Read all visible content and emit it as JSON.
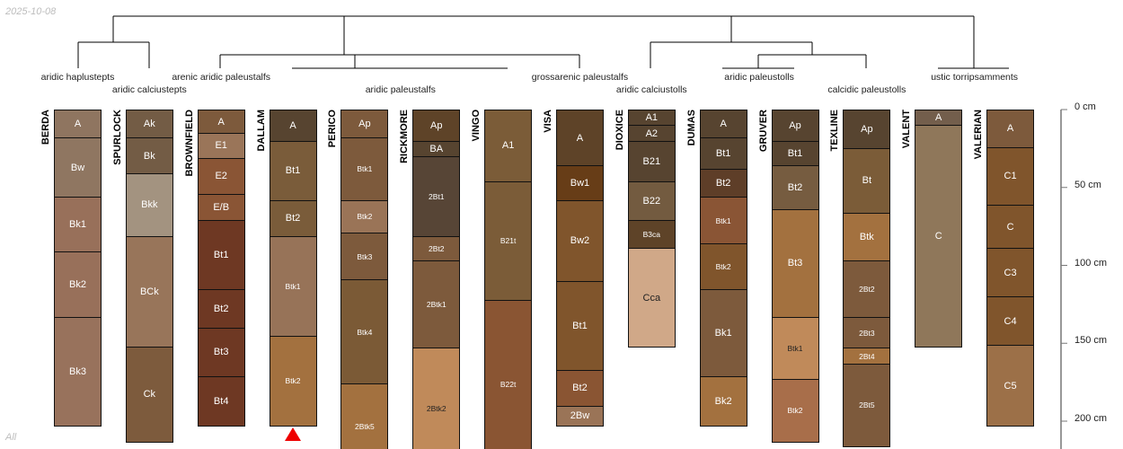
{
  "date": "2025-10-08",
  "group_label": "All",
  "colors": {
    "line": "#000000",
    "axis": "#777777",
    "marker": "#ee0000"
  },
  "taxa_row1": [
    {
      "label": "aridic haplustepts",
      "center_profile": 0
    },
    {
      "label": "arenic aridic paleustalfs",
      "center_profile": 2
    },
    {
      "label": "grossarenic paleustalfs",
      "center_profile": 7
    },
    {
      "label": "aridic paleustolls",
      "center_profile": 9.5
    },
    {
      "label": "ustic torripsamments",
      "center_profile": 12.5
    }
  ],
  "taxa_row2": [
    {
      "label": "aridic calciustepts",
      "center_profile": 1
    },
    {
      "label": "aridic paleustalfs",
      "center_profile": 4.5
    },
    {
      "label": "aridic calciustolls",
      "center_profile": 8
    },
    {
      "label": "calcidic paleustolls",
      "center_profile": 11
    }
  ],
  "depth_axis": {
    "unit": "cm",
    "ticks": [
      0,
      50,
      100,
      150,
      200
    ],
    "labels": [
      "0 cm",
      "50 cm",
      "100 cm",
      "150 cm",
      "200 cm"
    ]
  },
  "profiles": [
    {
      "name": "BERDA",
      "horizons": [
        {
          "n": "A",
          "t": 0,
          "b": 18,
          "c": "#8f7560"
        },
        {
          "n": "Bw",
          "t": 18,
          "b": 56,
          "c": "#8f7661"
        },
        {
          "n": "Bk1",
          "t": 56,
          "b": 91,
          "c": "#98705a"
        },
        {
          "n": "Bk2",
          "t": 91,
          "b": 133,
          "c": "#98705a"
        },
        {
          "n": "Bk3",
          "t": 133,
          "b": 203,
          "c": "#98725c"
        }
      ]
    },
    {
      "name": "SPURLOCK",
      "horizons": [
        {
          "n": "Ak",
          "t": 0,
          "b": 18,
          "c": "#735c45"
        },
        {
          "n": "Bk",
          "t": 18,
          "b": 41,
          "c": "#735c45"
        },
        {
          "n": "Bkk",
          "t": 41,
          "b": 81,
          "c": "#a39380"
        },
        {
          "n": "BCk",
          "t": 81,
          "b": 152,
          "c": "#98755a"
        },
        {
          "n": "Ck",
          "t": 152,
          "b": 213,
          "c": "#7d5b3d"
        }
      ]
    },
    {
      "name": "BROWNFIELD",
      "horizons": [
        {
          "n": "A",
          "t": 0,
          "b": 15,
          "c": "#7d5a3c"
        },
        {
          "n": "E1",
          "t": 15,
          "b": 31,
          "c": "#9a7559"
        },
        {
          "n": "E2",
          "t": 31,
          "b": 54,
          "c": "#8a5535"
        },
        {
          "n": "E/B",
          "t": 54,
          "b": 71,
          "c": "#8a5535"
        },
        {
          "n": "Bt1",
          "t": 71,
          "b": 115,
          "c": "#6e3823"
        },
        {
          "n": "Bt2",
          "t": 115,
          "b": 140,
          "c": "#6e3823"
        },
        {
          "n": "Bt3",
          "t": 140,
          "b": 171,
          "c": "#6e3823"
        },
        {
          "n": "Bt4",
          "t": 171,
          "b": 203,
          "c": "#6e3823"
        }
      ]
    },
    {
      "name": "DALLAM",
      "horizons": [
        {
          "n": "A",
          "t": 0,
          "b": 20,
          "c": "#574430"
        },
        {
          "n": "Bt1",
          "t": 20,
          "b": 58,
          "c": "#7a5c3a"
        },
        {
          "n": "Bt2",
          "t": 58,
          "b": 81,
          "c": "#7a5c3a"
        },
        {
          "n": "Btk1",
          "t": 81,
          "b": 145,
          "c": "#977358"
        },
        {
          "n": "Btk2",
          "t": 145,
          "b": 203,
          "c": "#a3713f"
        }
      ]
    },
    {
      "name": "PERICO",
      "horizons": [
        {
          "n": "Ap",
          "t": 0,
          "b": 18,
          "c": "#7d5a3c"
        },
        {
          "n": "Btk1",
          "t": 18,
          "b": 58,
          "c": "#7d5a3c"
        },
        {
          "n": "Btk2",
          "t": 58,
          "b": 79,
          "c": "#9a7457"
        },
        {
          "n": "Btk3",
          "t": 79,
          "b": 109,
          "c": "#7d5a3c"
        },
        {
          "n": "Btk4",
          "t": 109,
          "b": 176,
          "c": "#7b5a36"
        },
        {
          "n": "2Btk5",
          "t": 176,
          "b": 230,
          "c": "#a3713f"
        }
      ]
    },
    {
      "name": "RICKMORE",
      "horizons": [
        {
          "n": "Ap",
          "t": 0,
          "b": 20,
          "c": "#5e4328"
        },
        {
          "n": "BA",
          "t": 20,
          "b": 30,
          "c": "#574430"
        },
        {
          "n": "2Bt1",
          "t": 30,
          "b": 81,
          "c": "#574536"
        },
        {
          "n": "2Bt2",
          "t": 81,
          "b": 97,
          "c": "#7d5a3c"
        },
        {
          "n": "2Btk1",
          "t": 97,
          "b": 153,
          "c": "#7d5a3c"
        },
        {
          "n": "2Btk2",
          "t": 153,
          "b": 230,
          "c": "#c08a5a",
          "dark": true
        }
      ]
    },
    {
      "name": "VINGO",
      "horizons": [
        {
          "n": "A1",
          "t": 0,
          "b": 46,
          "c": "#7b5c38"
        },
        {
          "n": "B21t",
          "t": 46,
          "b": 122,
          "c": "#7b5c38"
        },
        {
          "n": "B22t",
          "t": 122,
          "b": 230,
          "c": "#8a5533"
        }
      ]
    },
    {
      "name": "VISA",
      "horizons": [
        {
          "n": "A",
          "t": 0,
          "b": 36,
          "c": "#5e4328"
        },
        {
          "n": "Bw1",
          "t": 36,
          "b": 58,
          "c": "#673d17"
        },
        {
          "n": "Bw2",
          "t": 58,
          "b": 110,
          "c": "#80552c"
        },
        {
          "n": "Bt1",
          "t": 110,
          "b": 167,
          "c": "#80552c"
        },
        {
          "n": "Bt2",
          "t": 167,
          "b": 190,
          "c": "#8a5533"
        },
        {
          "n": "2Bw",
          "t": 190,
          "b": 203,
          "c": "#9a7457"
        }
      ]
    },
    {
      "name": "DIOXICE",
      "horizons": [
        {
          "n": "A1",
          "t": 0,
          "b": 10,
          "c": "#574430"
        },
        {
          "n": "A2",
          "t": 10,
          "b": 20,
          "c": "#574430"
        },
        {
          "n": "B21",
          "t": 20,
          "b": 46,
          "c": "#574430"
        },
        {
          "n": "B22",
          "t": 46,
          "b": 71,
          "c": "#735b40"
        },
        {
          "n": "B3ca",
          "t": 71,
          "b": 89,
          "c": "#5e4328"
        },
        {
          "n": "Cca",
          "t": 89,
          "b": 152,
          "c": "#d0a888",
          "dark": true
        }
      ]
    },
    {
      "name": "DUMAS",
      "horizons": [
        {
          "n": "A",
          "t": 0,
          "b": 18,
          "c": "#574430"
        },
        {
          "n": "Bt1",
          "t": 18,
          "b": 38,
          "c": "#574430"
        },
        {
          "n": "Bt2",
          "t": 38,
          "b": 56,
          "c": "#5e3e28"
        },
        {
          "n": "Btk1",
          "t": 56,
          "b": 86,
          "c": "#8a5535"
        },
        {
          "n": "Btk2",
          "t": 86,
          "b": 115,
          "c": "#80552c"
        },
        {
          "n": "Bk1",
          "t": 115,
          "b": 171,
          "c": "#7d5a3c"
        },
        {
          "n": "Bk2",
          "t": 171,
          "b": 203,
          "c": "#a3713f"
        }
      ]
    },
    {
      "name": "GRUVER",
      "horizons": [
        {
          "n": "Ap",
          "t": 0,
          "b": 20,
          "c": "#574430"
        },
        {
          "n": "Bt1",
          "t": 20,
          "b": 36,
          "c": "#574430"
        },
        {
          "n": "Bt2",
          "t": 36,
          "b": 64,
          "c": "#765c40"
        },
        {
          "n": "Bt3",
          "t": 64,
          "b": 133,
          "c": "#a3713f"
        },
        {
          "n": "Btk1",
          "t": 133,
          "b": 173,
          "c": "#c08a5a",
          "dark": true
        },
        {
          "n": "Btk2",
          "t": 173,
          "b": 213,
          "c": "#a86e4a"
        }
      ]
    },
    {
      "name": "TEXLINE",
      "horizons": [
        {
          "n": "Ap",
          "t": 0,
          "b": 25,
          "c": "#574430"
        },
        {
          "n": "Bt",
          "t": 25,
          "b": 66,
          "c": "#7b5c38"
        },
        {
          "n": "Btk",
          "t": 66,
          "b": 97,
          "c": "#a3713f"
        },
        {
          "n": "2Bt2",
          "t": 97,
          "b": 133,
          "c": "#7d5a3c"
        },
        {
          "n": "2Bt3",
          "t": 133,
          "b": 153,
          "c": "#7d5a3c"
        },
        {
          "n": "2Bt4",
          "t": 153,
          "b": 163,
          "c": "#a3713f"
        },
        {
          "n": "2Bt5",
          "t": 163,
          "b": 216,
          "c": "#7d5a3c"
        }
      ]
    },
    {
      "name": "VALENT",
      "horizons": [
        {
          "n": "A",
          "t": 0,
          "b": 10,
          "c": "#735e4c"
        },
        {
          "n": "C",
          "t": 10,
          "b": 152,
          "c": "#8f775a"
        }
      ]
    },
    {
      "name": "VALERIAN",
      "horizons": [
        {
          "n": "A",
          "t": 0,
          "b": 24,
          "c": "#7d5a3c"
        },
        {
          "n": "C1",
          "t": 24,
          "b": 61,
          "c": "#80552c"
        },
        {
          "n": "C",
          "t": 61,
          "b": 89,
          "c": "#80552c"
        },
        {
          "n": "C3",
          "t": 89,
          "b": 120,
          "c": "#80552c"
        },
        {
          "n": "C4",
          "t": 120,
          "b": 151,
          "c": "#80552c"
        },
        {
          "n": "C5",
          "t": 151,
          "b": 203,
          "c": "#9c7048"
        }
      ]
    }
  ]
}
